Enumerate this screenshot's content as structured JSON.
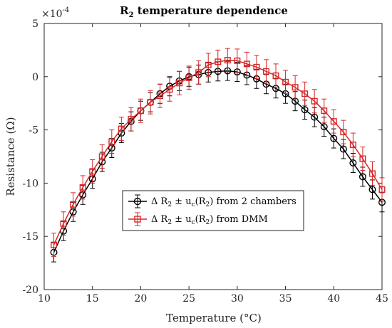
{
  "chart_data": {
    "type": "line",
    "title": {
      "main": "R",
      "sub": "2",
      "rest": " temperature dependence"
    },
    "xlabel": "Temperature (°C)",
    "ylabel": "Resistance (Ω)",
    "y_exponent_label": {
      "base": "×10",
      "exp": "-4"
    },
    "xlim": [
      10,
      45
    ],
    "ylim": [
      -20,
      5
    ],
    "xticks": [
      10,
      15,
      20,
      25,
      30,
      35,
      40,
      45
    ],
    "yticks": [
      -20,
      -15,
      -10,
      -5,
      0,
      5
    ],
    "grid": false,
    "legend_position": "center-left",
    "x": [
      11,
      12,
      13,
      14,
      15,
      16,
      17,
      18,
      19,
      20,
      21,
      22,
      23,
      24,
      25,
      26,
      27,
      28,
      29,
      30,
      31,
      32,
      33,
      34,
      35,
      36,
      37,
      38,
      39,
      40,
      41,
      42,
      43,
      44,
      45
    ],
    "series": [
      {
        "name": "Δ R₂ ± u꜀(R₂) from 2 chambers",
        "legend": {
          "p1": "Δ R",
          "s1": "2",
          "p2": " ± u",
          "s2": "c",
          "p3": "(R",
          "s3": "2",
          "p4": ") from 2 chambers"
        },
        "color": "#000000",
        "marker": "circle",
        "values": [
          -16.5,
          -14.5,
          -12.7,
          -11.1,
          -9.6,
          -8.0,
          -6.7,
          -5.3,
          -4.2,
          -3.2,
          -2.4,
          -1.6,
          -0.9,
          -0.4,
          0.0,
          0.2,
          0.4,
          0.5,
          0.55,
          0.45,
          0.15,
          -0.2,
          -0.7,
          -1.1,
          -1.6,
          -2.3,
          -3.1,
          -3.8,
          -4.7,
          -5.8,
          -6.8,
          -8.1,
          -9.4,
          -10.6,
          -11.8
        ],
        "errors": [
          0.9,
          0.9,
          0.9,
          0.9,
          0.9,
          0.9,
          0.9,
          0.9,
          0.9,
          0.9,
          0.9,
          0.9,
          0.9,
          0.9,
          0.9,
          0.9,
          0.9,
          0.9,
          0.9,
          0.9,
          0.9,
          0.9,
          0.9,
          0.9,
          0.9,
          0.9,
          0.9,
          0.9,
          0.9,
          0.9,
          0.9,
          0.9,
          0.9,
          0.9,
          0.9
        ]
      },
      {
        "name": "Δ R₂ ± u꜀(R₂) from DMM",
        "legend": {
          "p1": "Δ R",
          "s1": "2",
          "p2": " ± u",
          "s2": "c",
          "p3": "(R",
          "s3": "2",
          "p4": ") from DMM"
        },
        "color": "#d62728",
        "marker": "square",
        "values": [
          -15.8,
          -13.8,
          -12.0,
          -10.4,
          -8.9,
          -7.5,
          -6.1,
          -4.9,
          -4.0,
          -3.2,
          -2.4,
          -1.8,
          -1.2,
          -0.6,
          -0.1,
          0.4,
          1.1,
          1.4,
          1.55,
          1.5,
          1.2,
          0.9,
          0.5,
          0.1,
          -0.5,
          -1.0,
          -1.6,
          -2.3,
          -3.2,
          -4.2,
          -5.2,
          -6.4,
          -7.7,
          -9.1,
          -10.6
        ],
        "errors": [
          1.1,
          1.1,
          1.1,
          1.1,
          1.1,
          1.1,
          1.1,
          1.1,
          1.1,
          1.1,
          1.1,
          1.1,
          1.1,
          1.1,
          1.1,
          1.1,
          1.1,
          1.1,
          1.1,
          1.1,
          1.1,
          1.1,
          1.1,
          1.1,
          1.1,
          1.1,
          1.1,
          1.1,
          1.1,
          1.1,
          1.1,
          1.1,
          1.1,
          1.1,
          1.1
        ]
      }
    ]
  }
}
